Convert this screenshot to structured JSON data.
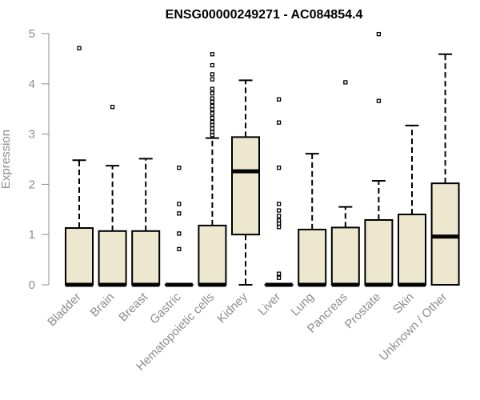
{
  "chart_data": {
    "type": "boxplot",
    "title": "ENSG00000249271 - AC084854.4",
    "xlabel": "",
    "ylabel": "Expression",
    "ylim": [
      0,
      5
    ],
    "yticks": [
      0,
      1,
      2,
      3,
      4,
      5
    ],
    "grid": false,
    "box_fill": "#ede7cf",
    "categories": [
      "Bladder",
      "Brain",
      "Breast",
      "Gastric",
      "Hematopoietic cells",
      "Kidney",
      "Liver",
      "Lung",
      "Pancreas",
      "Prostate",
      "Skin",
      "Unknown / Other"
    ],
    "boxes": [
      {
        "min": 0,
        "q1": 0,
        "median": 0,
        "q3": 1.13,
        "max": 2.48,
        "outliers": [
          4.71
        ]
      },
      {
        "min": 0,
        "q1": 0,
        "median": 0,
        "q3": 1.07,
        "max": 2.37,
        "outliers": [
          3.54
        ]
      },
      {
        "min": 0,
        "q1": 0,
        "median": 0,
        "q3": 1.07,
        "max": 2.51,
        "outliers": []
      },
      {
        "min": 0,
        "q1": 0,
        "median": 0,
        "q3": 0,
        "max": 0,
        "outliers": [
          2.33,
          1.61,
          1.42,
          1.02,
          0.71
        ]
      },
      {
        "min": 0,
        "q1": 0,
        "median": 0,
        "q3": 1.18,
        "max": 2.92,
        "outliers": [
          4.59,
          4.37,
          4.19,
          4.09,
          3.9,
          3.81,
          3.71,
          3.64,
          3.56,
          3.49,
          3.41,
          3.32,
          3.24,
          3.18,
          3.11,
          3.04,
          2.98
        ]
      },
      {
        "min": 0,
        "q1": 1.0,
        "median": 2.26,
        "q3": 2.94,
        "max": 4.07,
        "outliers": []
      },
      {
        "min": 0,
        "q1": 0,
        "median": 0,
        "q3": 0,
        "max": 0,
        "outliers": [
          3.69,
          3.23,
          2.33,
          1.61,
          1.48,
          1.37,
          1.28,
          1.22,
          1.15,
          0.22,
          0.14
        ]
      },
      {
        "min": 0,
        "q1": 0,
        "median": 0,
        "q3": 1.1,
        "max": 2.61,
        "outliers": []
      },
      {
        "min": 0,
        "q1": 0,
        "median": 0,
        "q3": 1.14,
        "max": 1.55,
        "outliers": [
          4.03
        ]
      },
      {
        "min": 0,
        "q1": 0,
        "median": 0,
        "q3": 1.29,
        "max": 2.07,
        "outliers": [
          4.99,
          3.66
        ]
      },
      {
        "min": 0,
        "q1": 0,
        "median": 0,
        "q3": 1.4,
        "max": 3.17,
        "outliers": []
      },
      {
        "min": 0,
        "q1": 0,
        "median": 0.96,
        "q3": 2.02,
        "max": 4.59,
        "outliers": []
      }
    ]
  }
}
